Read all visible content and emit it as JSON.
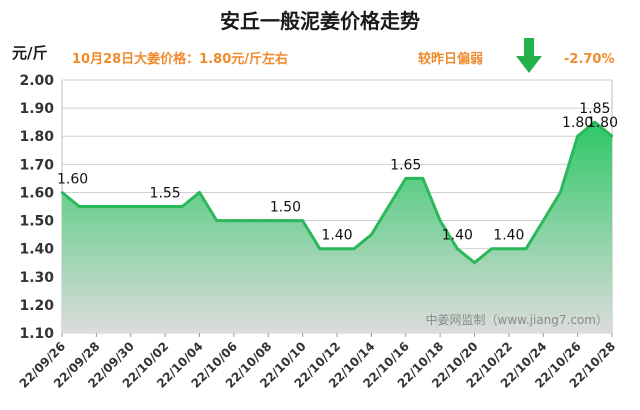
{
  "chart_data": {
    "type": "area",
    "title": "安丘一般泥姜价格走势",
    "ylabel": "元/斤",
    "ylim": [
      1.1,
      2.0
    ],
    "ytick_labels": [
      "1.10",
      "1.20",
      "1.30",
      "1.40",
      "1.50",
      "1.60",
      "1.70",
      "1.80",
      "1.90",
      "2.00"
    ],
    "x_tick_labels": [
      "22/09/26",
      "22/09/28",
      "22/09/30",
      "22/10/02",
      "22/10/04",
      "22/10/06",
      "22/10/08",
      "22/10/10",
      "22/10/12",
      "22/10/14",
      "22/10/16",
      "22/10/18",
      "22/10/20",
      "22/10/22",
      "22/10/24",
      "22/10/26",
      "22/10/28"
    ],
    "x": [
      "22/09/26",
      "22/09/27",
      "22/09/28",
      "22/09/29",
      "22/09/30",
      "22/10/01",
      "22/10/02",
      "22/10/03",
      "22/10/04",
      "22/10/05",
      "22/10/06",
      "22/10/07",
      "22/10/08",
      "22/10/09",
      "22/10/10",
      "22/10/11",
      "22/10/12",
      "22/10/13",
      "22/10/14",
      "22/10/15",
      "22/10/16",
      "22/10/17",
      "22/10/18",
      "22/10/19",
      "22/10/20",
      "22/10/21",
      "22/10/22",
      "22/10/23",
      "22/10/24",
      "22/10/25",
      "22/10/26",
      "22/10/27",
      "22/10/28"
    ],
    "values": [
      1.6,
      1.55,
      1.55,
      1.55,
      1.55,
      1.55,
      1.55,
      1.55,
      1.6,
      1.5,
      1.5,
      1.5,
      1.5,
      1.5,
      1.5,
      1.4,
      1.4,
      1.4,
      1.45,
      1.55,
      1.65,
      1.65,
      1.5,
      1.4,
      1.35,
      1.4,
      1.4,
      1.4,
      1.5,
      1.6,
      1.8,
      1.85,
      1.8
    ],
    "data_labels": [
      {
        "x": "22/09/26",
        "text": "1.60"
      },
      {
        "x": "22/10/02",
        "text": "1.55"
      },
      {
        "x": "22/10/09",
        "text": "1.50"
      },
      {
        "x": "22/10/12",
        "text": "1.40"
      },
      {
        "x": "22/10/16",
        "text": "1.65"
      },
      {
        "x": "22/10/19",
        "text": "1.40"
      },
      {
        "x": "22/10/22",
        "text": "1.40"
      },
      {
        "x": "22/10/26",
        "text": "1.80"
      },
      {
        "x": "22/10/27",
        "text": "1.85"
      },
      {
        "x": "22/10/28",
        "text": "1.80"
      }
    ],
    "grid": true,
    "colors": {
      "line": "#2bb85a",
      "fill_top": "#2ec866",
      "fill_bottom": "#dcdcdc",
      "grid": "#d0d0d0",
      "note": "#f08a2c",
      "arrow": "#23b24a"
    }
  },
  "annotations": {
    "price_note": "10月28日大姜价格：1.80元/斤左右",
    "compare_note": "较昨日偏弱",
    "change": "-2.70%",
    "trend_icon": "down-arrow-icon"
  },
  "watermark": "中姜网监制（www.jiang7.com）"
}
